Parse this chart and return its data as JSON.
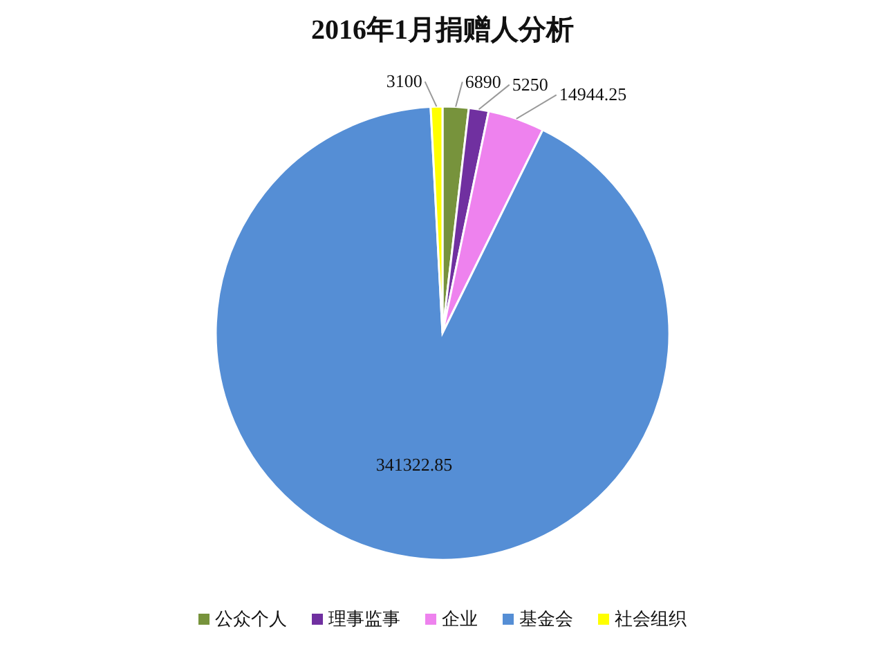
{
  "chart_data": {
    "type": "pie",
    "title": "2016年1月捐赠人分析",
    "categories": [
      "公众个人",
      "理事监事",
      "企业",
      "基金会",
      "社会组织"
    ],
    "values": [
      6890,
      5250,
      14944.25,
      341322.85,
      3100
    ],
    "colors": [
      "#77933c",
      "#7030a0",
      "#ee82ee",
      "#558ed5",
      "#ffff00"
    ],
    "data_labels": true,
    "legend": "bottom"
  }
}
